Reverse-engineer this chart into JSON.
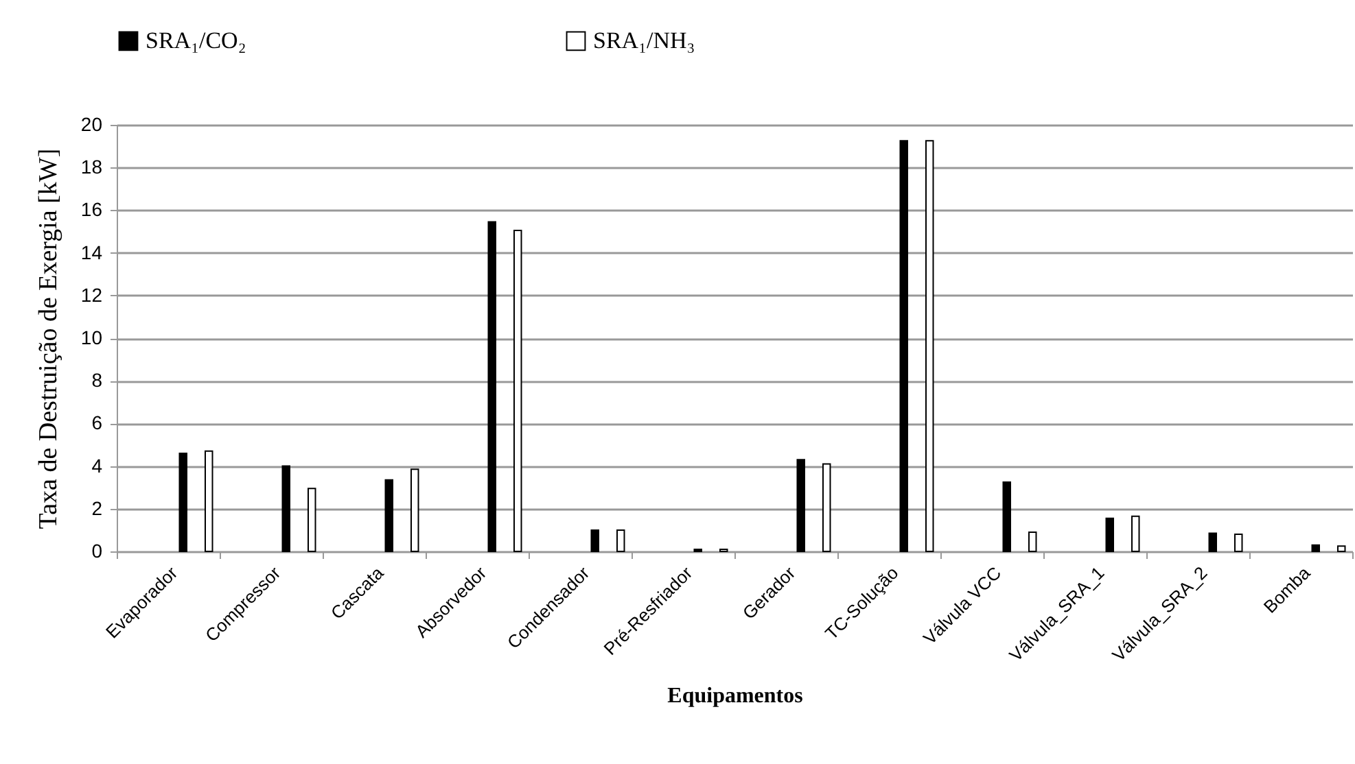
{
  "chart_data": {
    "type": "bar",
    "xlabel": "Equipamentos",
    "ylabel": "Taxa de  Destruição de Exergia [kW]",
    "categories": [
      "Evaporador",
      "Compressor",
      "Cascata",
      "Absorvedor",
      "Condensador",
      "Pré-Resfriador",
      "Gerador",
      "TC-Solução",
      "Válvula VCC",
      "Válvula_SRA_1",
      "Válvula_SRA_2",
      "Bomba"
    ],
    "series": [
      {
        "name": "SRA₁/CO₂",
        "color": "#000000",
        "values": [
          4.6,
          4.0,
          3.35,
          15.45,
          1.0,
          0.1,
          4.3,
          19.25,
          3.25,
          1.55,
          0.85,
          0.3
        ]
      },
      {
        "name": "SRA₁/NH₃",
        "color": "#ffffff",
        "values": [
          4.7,
          2.95,
          3.85,
          15.05,
          1.0,
          0.1,
          4.1,
          19.25,
          0.9,
          1.65,
          0.8,
          0.25
        ]
      }
    ],
    "ylim": [
      0,
      20
    ],
    "yticks": [
      0,
      2,
      4,
      6,
      8,
      10,
      12,
      14,
      16,
      18,
      20
    ],
    "grid": "y",
    "legend": "top"
  }
}
